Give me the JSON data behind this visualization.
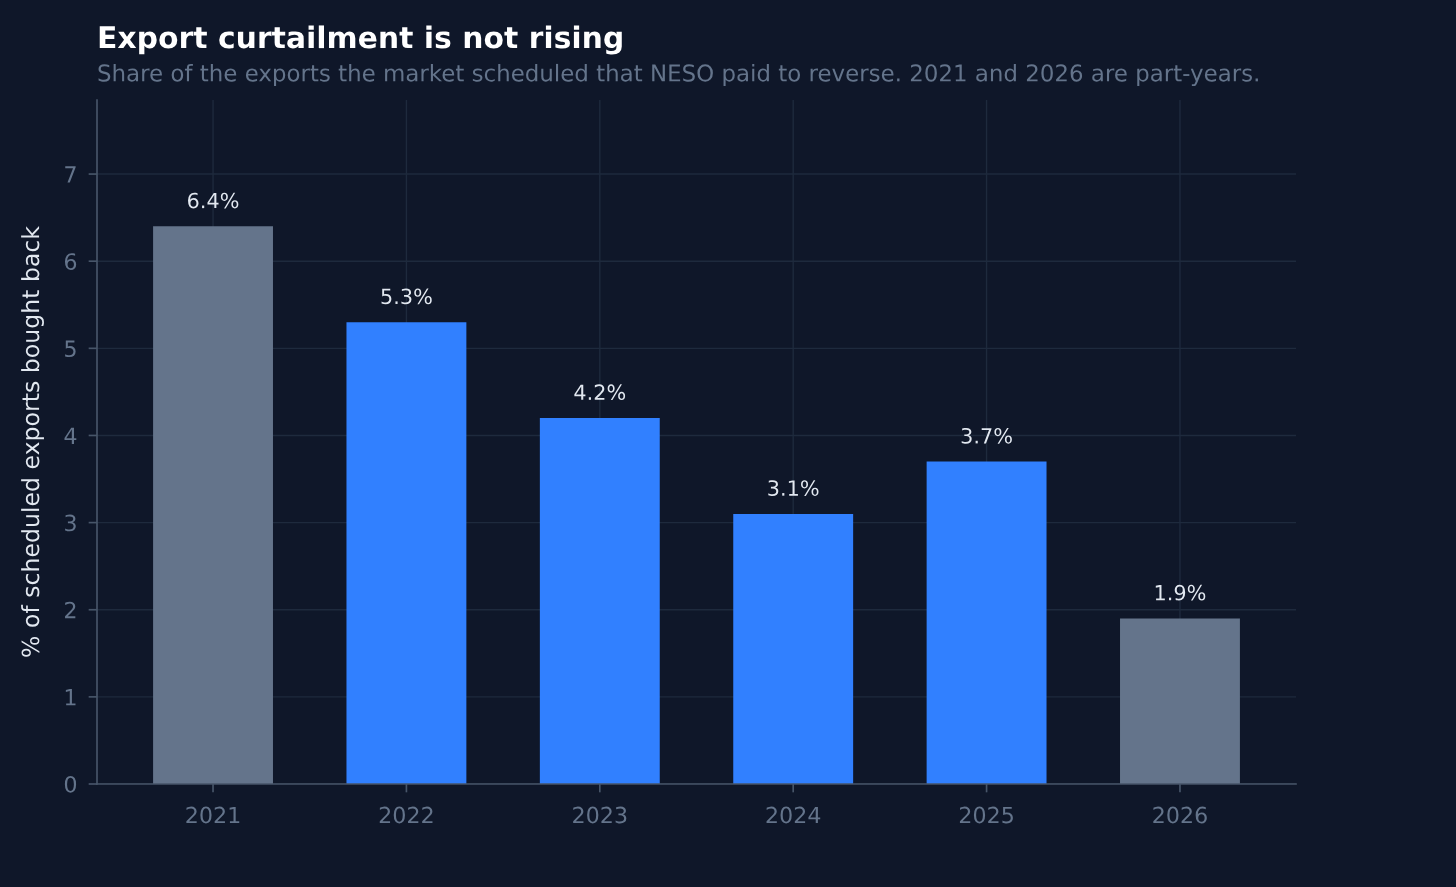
{
  "chart_data": {
    "type": "bar",
    "title": "Export curtailment is not rising",
    "subtitle": "Share of the exports the market scheduled that NESO paid to reverse. 2021 and 2026 are part-years.",
    "ylabel": "% of scheduled exports bought back",
    "categories": [
      "2021",
      "2022",
      "2023",
      "2024",
      "2025",
      "2026"
    ],
    "values": [
      6.4,
      5.3,
      4.2,
      3.1,
      3.7,
      1.9
    ],
    "colors": [
      "#64748b",
      "#3180ff",
      "#3180ff",
      "#3180ff",
      "#3180ff",
      "#64748b"
    ],
    "value_labels": [
      "6.4%",
      "5.3%",
      "4.2%",
      "3.1%",
      "3.7%",
      "1.9%"
    ],
    "ylim": [
      0,
      7.85
    ],
    "yticks": [
      0,
      1,
      2,
      3,
      4,
      5,
      6,
      7
    ],
    "grid": true
  }
}
